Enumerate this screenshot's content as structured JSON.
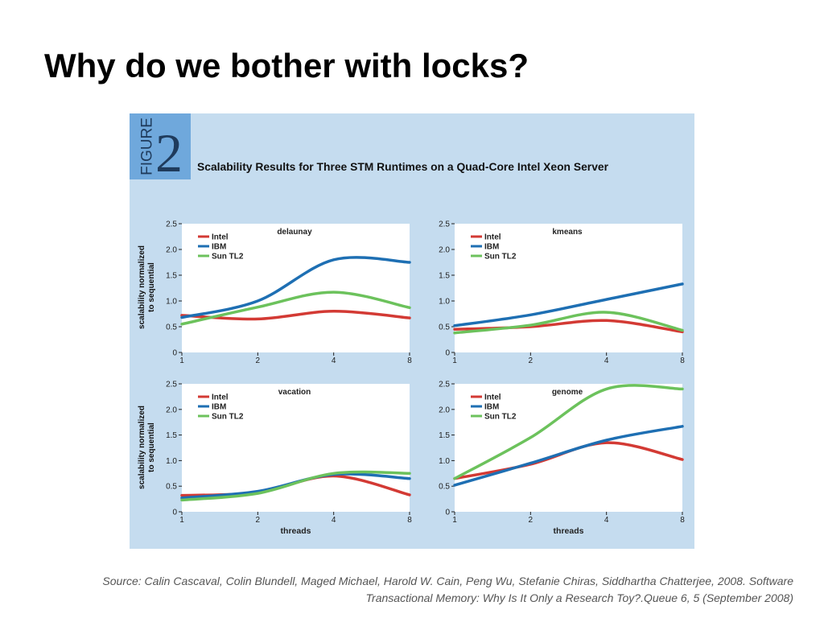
{
  "slide": {
    "title": "Why do we bother with locks?",
    "source_line1": "Source: Calin Cascaval, Colin Blundell, Maged Michael, Harold W. Cain, Peng Wu, Stefanie Chiras, Siddhartha Chatterjee, 2008. Software",
    "source_line2": "Transactional Memory: Why Is It Only a Research Toy?.Queue 6, 5 (September 2008)"
  },
  "figure": {
    "badge_word": "FIGURE",
    "badge_number": "2",
    "title": "Scalability Results for Three STM Runtimes on a Quad-Core Intel Xeon Server",
    "ylabel_line1": "scalability normalized",
    "ylabel_line2": "to sequential",
    "colors": {
      "background": "#c5dcef",
      "panel": "#ffffff",
      "badge": "#6fa8dc",
      "Intel": "#d33a34",
      "IBM": "#1e6fb3",
      "Sun TL2": "#6cc25c"
    }
  },
  "chart_data": [
    {
      "type": "line",
      "title": "delaunay",
      "xlabel": "",
      "ylabel": "scalability normalized to sequential",
      "x": [
        1,
        2,
        4,
        8
      ],
      "x_ticks": [
        "1",
        "2",
        "4",
        "8"
      ],
      "ylim": [
        0,
        2.5
      ],
      "y_ticks": [
        "0",
        "0.5",
        "1.0",
        "1.5",
        "2.0",
        "2.5"
      ],
      "legend": "top-left",
      "series": [
        {
          "name": "Intel",
          "values": [
            0.72,
            0.65,
            0.8,
            0.67
          ]
        },
        {
          "name": "IBM",
          "values": [
            0.68,
            1.0,
            1.8,
            1.75
          ]
        },
        {
          "name": "Sun TL2",
          "values": [
            0.55,
            0.88,
            1.17,
            0.87
          ]
        }
      ]
    },
    {
      "type": "line",
      "title": "kmeans",
      "xlabel": "",
      "ylabel": "",
      "x": [
        1,
        2,
        4,
        8
      ],
      "x_ticks": [
        "1",
        "2",
        "4",
        "8"
      ],
      "ylim": [
        0,
        2.5
      ],
      "y_ticks": [
        "0",
        "0.5",
        "1.0",
        "1.5",
        "2.0",
        "2.5"
      ],
      "legend": "top-left",
      "series": [
        {
          "name": "Intel",
          "values": [
            0.45,
            0.5,
            0.62,
            0.4
          ]
        },
        {
          "name": "IBM",
          "values": [
            0.52,
            0.73,
            1.03,
            1.33
          ]
        },
        {
          "name": "Sun TL2",
          "values": [
            0.38,
            0.53,
            0.78,
            0.43
          ]
        }
      ]
    },
    {
      "type": "line",
      "title": "vacation",
      "xlabel": "threads",
      "ylabel": "scalability normalized to sequential",
      "x": [
        1,
        2,
        4,
        8
      ],
      "x_ticks": [
        "1",
        "2",
        "4",
        "8"
      ],
      "ylim": [
        0,
        2.5
      ],
      "y_ticks": [
        "0",
        "0.5",
        "1.0",
        "1.5",
        "2.0",
        "2.5"
      ],
      "legend": "top-left",
      "series": [
        {
          "name": "Intel",
          "values": [
            0.32,
            0.38,
            0.7,
            0.33
          ]
        },
        {
          "name": "IBM",
          "values": [
            0.27,
            0.4,
            0.73,
            0.65
          ]
        },
        {
          "name": "Sun TL2",
          "values": [
            0.23,
            0.36,
            0.75,
            0.75
          ]
        }
      ]
    },
    {
      "type": "line",
      "title": "genome",
      "xlabel": "threads",
      "ylabel": "",
      "x": [
        1,
        2,
        4,
        8
      ],
      "x_ticks": [
        "1",
        "2",
        "4",
        "8"
      ],
      "ylim": [
        0,
        2.5
      ],
      "y_ticks": [
        "0",
        "0.5",
        "1.0",
        "1.5",
        "2.0",
        "2.5"
      ],
      "legend": "top-left",
      "series": [
        {
          "name": "Intel",
          "values": [
            0.65,
            0.93,
            1.35,
            1.02
          ]
        },
        {
          "name": "IBM",
          "values": [
            0.52,
            0.95,
            1.4,
            1.67
          ]
        },
        {
          "name": "Sun TL2",
          "values": [
            0.65,
            1.45,
            2.4,
            2.4
          ]
        }
      ]
    }
  ]
}
